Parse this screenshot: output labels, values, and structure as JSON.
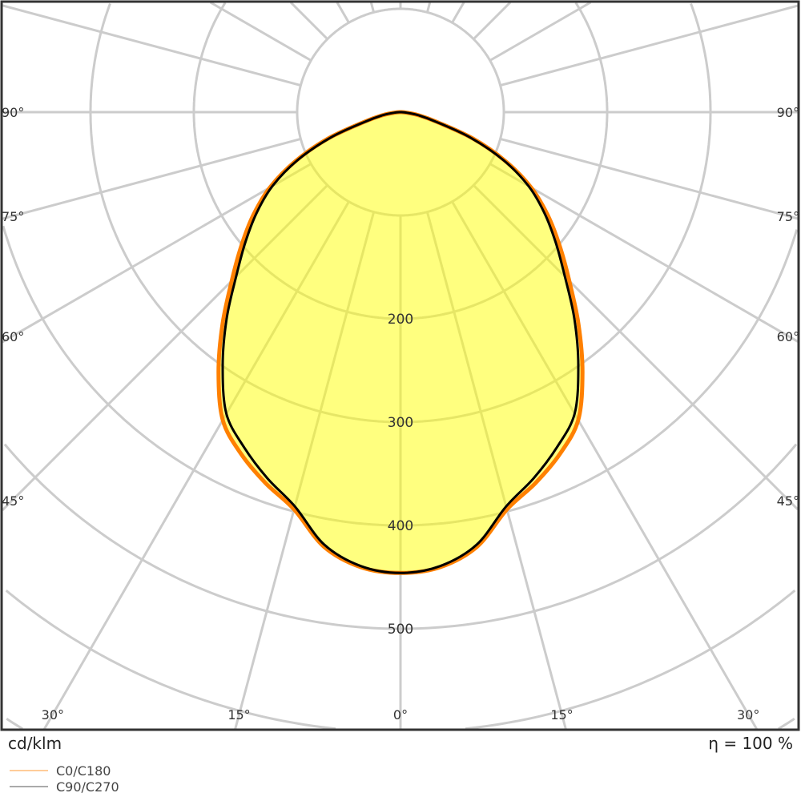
{
  "chart_data": {
    "type": "polar",
    "unit_label": "cd/klm",
    "efficiency_label": "η = 100 %",
    "radial_ticks": [
      100,
      200,
      300,
      400,
      500,
      600,
      700
    ],
    "radial_tick_labels": [
      "200",
      "300",
      "400",
      "500"
    ],
    "angle_step_deg": 15,
    "side_angle_labels": [
      "90°",
      "75°",
      "60°",
      "45°"
    ],
    "bottom_angle_labels": [
      "30°",
      "15°",
      "0°",
      "15°",
      "30°"
    ],
    "grid": true,
    "legend_placement": "bottom-left",
    "angles_deg": [
      0,
      5,
      10,
      15,
      20,
      25,
      30,
      35,
      40,
      45,
      50,
      55,
      60,
      65,
      70,
      75,
      80,
      85,
      90
    ],
    "series": [
      {
        "name": "C0/C180",
        "color": "#ff8000",
        "legend_color": "#ffcc99",
        "values": [
          446,
          442,
          427,
          398,
          382,
          365,
          344,
          307,
          268,
          231,
          201,
          174,
          146,
          112,
          74,
          36,
          18,
          6,
          0
        ]
      },
      {
        "name": "C90/C270",
        "color": "#000000",
        "legend_color": "#aaaaaa",
        "values": [
          446,
          441,
          425,
          395,
          377,
          358,
          337,
          300,
          262,
          225,
          196,
          170,
          143,
          110,
          72,
          35,
          18,
          6,
          0
        ]
      }
    ],
    "fill_color": "#ffff80",
    "grid_color": "#cccccc"
  }
}
